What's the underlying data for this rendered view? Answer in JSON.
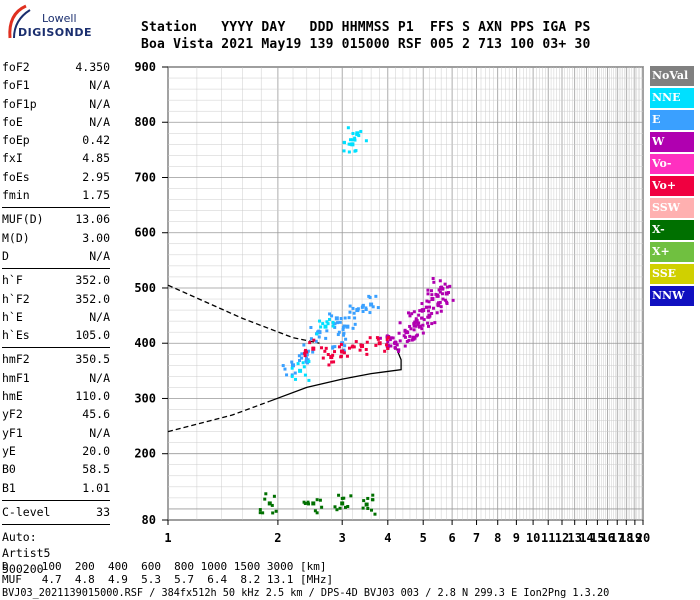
{
  "logo": {
    "line1": "Lowell",
    "line2": "DIGISONDE"
  },
  "header": {
    "line1": "Station   YYYY DAY   DDD HHMMSS P1  FFS S AXN PPS IGA PS",
    "line2": "Boa Vista 2021 May19 139 015000 RSF 005 2 713 100 03+ 30"
  },
  "params": [
    {
      "label": "foF2",
      "value": "4.350"
    },
    {
      "label": "foF1",
      "value": "N/A"
    },
    {
      "label": "foF1p",
      "value": "N/A"
    },
    {
      "label": "foE",
      "value": "N/A"
    },
    {
      "label": "foEp",
      "value": "0.42"
    },
    {
      "label": "fxI",
      "value": "4.85"
    },
    {
      "label": "foEs",
      "value": "2.95"
    },
    {
      "label": "fmin",
      "value": "1.75"
    },
    {
      "sep": true
    },
    {
      "label": "MUF(D)",
      "value": "13.06"
    },
    {
      "label": "M(D)",
      "value": "3.00"
    },
    {
      "label": "D",
      "value": "N/A"
    },
    {
      "sep": true
    },
    {
      "label": "h`F",
      "value": "352.0"
    },
    {
      "label": "h`F2",
      "value": "352.0"
    },
    {
      "label": "h`E",
      "value": "N/A"
    },
    {
      "label": "h`Es",
      "value": "105.0"
    },
    {
      "sep": true
    },
    {
      "label": "hmF2",
      "value": "350.5"
    },
    {
      "label": "hmF1",
      "value": "N/A"
    },
    {
      "label": "hmE",
      "value": "110.0"
    },
    {
      "label": "yF2",
      "value": "45.6"
    },
    {
      "label": "yF1",
      "value": "N/A"
    },
    {
      "label": "yE",
      "value": "20.0"
    },
    {
      "label": "B0",
      "value": "58.5"
    },
    {
      "label": "B1",
      "value": "1.01"
    },
    {
      "sep": true
    },
    {
      "label": "C-level",
      "value": "33"
    },
    {
      "sep": true
    }
  ],
  "scaling": {
    "line1": "Auto:",
    "line2": "Artist5",
    "line3": "500200"
  },
  "footer": {
    "line1": "D     100  200  400  600  800 1000 1500 3000 [km]",
    "line2": "MUF   4.7  4.8  4.9  5.3  5.7  6.4  8.2 13.1 [MHz]",
    "line3": "BVJ03_2021139015000.RSF / 384fx512h 50 kHz 2.5 km / DPS-4D BVJ03 003 / 2.8 N 299.3 E Ion2Png 1.3.20"
  },
  "legend": [
    {
      "label": "NoVal",
      "color": "#808080"
    },
    {
      "label": "NNE",
      "color": "#00e0ff"
    },
    {
      "label": "E",
      "color": "#3aa0ff"
    },
    {
      "label": "W",
      "color": "#b000b0"
    },
    {
      "label": "Vo-",
      "color": "#ff30c0"
    },
    {
      "label": "Vo+",
      "color": "#f00040"
    },
    {
      "label": "SSW",
      "color": "#ffb0b0"
    },
    {
      "label": "X-",
      "color": "#007000"
    },
    {
      "label": "X+",
      "color": "#70c040"
    },
    {
      "label": "SSE",
      "color": "#d0d000"
    },
    {
      "label": "NNW",
      "color": "#1010c0"
    }
  ],
  "chart_data": {
    "type": "scatter",
    "title": "",
    "xlabel": "",
    "ylabel": "",
    "xlim": [
      1,
      20
    ],
    "ylim": [
      80,
      900
    ],
    "xticks": [
      1,
      2,
      3,
      4,
      5,
      6,
      7,
      8,
      9,
      10,
      11,
      12,
      13,
      14,
      15,
      16,
      17,
      18,
      19,
      20
    ],
    "yticks": [
      80,
      200,
      300,
      400,
      500,
      600,
      700,
      800,
      900
    ],
    "grid": true,
    "axis_scale": "frequency MHz (log), virtual height km",
    "series": [
      {
        "color": "#b000b0",
        "points": [
          [
            4.2,
            400
          ],
          [
            4.5,
            420
          ],
          [
            4.8,
            440
          ],
          [
            5.0,
            460
          ],
          [
            5.3,
            480
          ],
          [
            5.6,
            500
          ],
          [
            5.8,
            490
          ],
          [
            5.2,
            450
          ],
          [
            4.7,
            410
          ],
          [
            4.0,
            395
          ],
          [
            5.5,
            470
          ],
          [
            4.9,
            430
          ]
        ]
      },
      {
        "color": "#3aa0ff",
        "points": [
          [
            2.6,
            420
          ],
          [
            2.9,
            445
          ],
          [
            3.1,
            430
          ],
          [
            3.3,
            460
          ],
          [
            3.6,
            470
          ],
          [
            2.4,
            380
          ],
          [
            2.2,
            360
          ],
          [
            3.0,
            400
          ]
        ]
      },
      {
        "color": "#f00040",
        "points": [
          [
            2.5,
            390
          ],
          [
            3.0,
            385
          ],
          [
            3.4,
            395
          ],
          [
            3.8,
            400
          ],
          [
            2.8,
            375
          ]
        ]
      },
      {
        "color": "#007000",
        "points": [
          [
            1.9,
            110
          ],
          [
            2.5,
            110
          ],
          [
            3.0,
            110
          ],
          [
            3.5,
            108
          ]
        ]
      },
      {
        "color": "#00e0ff",
        "points": [
          [
            3.3,
            780
          ],
          [
            3.2,
            760
          ],
          [
            2.7,
            430
          ],
          [
            2.3,
            350
          ]
        ]
      }
    ],
    "lines": [
      {
        "style": "dashed",
        "points": [
          [
            1.0,
            505
          ],
          [
            1.6,
            445
          ],
          [
            2.2,
            410
          ],
          [
            2.6,
            400
          ]
        ]
      },
      {
        "style": "dashed",
        "points": [
          [
            1.0,
            240
          ],
          [
            1.5,
            270
          ],
          [
            1.9,
            295
          ]
        ]
      },
      {
        "style": "solid",
        "points": [
          [
            1.9,
            295
          ],
          [
            2.4,
            320
          ],
          [
            3.0,
            335
          ],
          [
            3.6,
            345
          ],
          [
            4.35,
            352
          ],
          [
            4.35,
            370
          ],
          [
            4.2,
            395
          ]
        ]
      }
    ]
  }
}
